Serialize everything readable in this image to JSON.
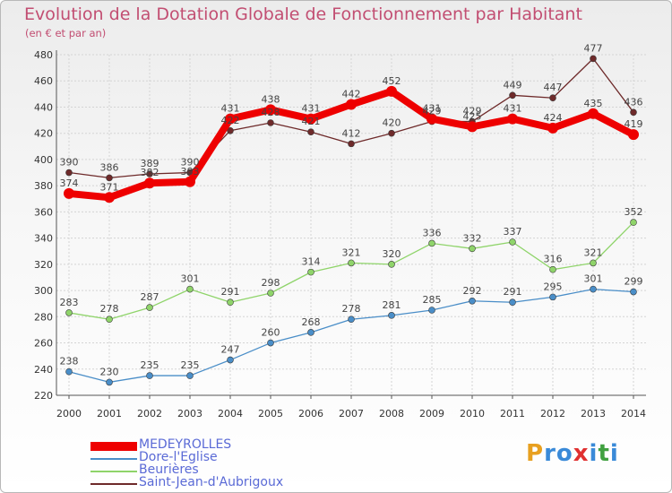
{
  "header": {
    "title": "Evolution de la Dotation Globale de Fonctionnement par Habitant",
    "subtitle": "(en € et par an)"
  },
  "logo": {
    "letters": [
      "P",
      "r",
      "o",
      "x",
      "i",
      "t",
      "i"
    ],
    "colors": [
      "#e8a020",
      "#3a8ad8",
      "#3a8ad8",
      "#e03030",
      "#3a8ad8",
      "#40a040",
      "#3a8ad8"
    ]
  },
  "chart_data": {
    "type": "line",
    "x": [
      "2000",
      "2001",
      "2002",
      "2003",
      "2004",
      "2005",
      "2006",
      "2007",
      "2008",
      "2009",
      "2010",
      "2011",
      "2012",
      "2013",
      "2014"
    ],
    "ylim": [
      220,
      480
    ],
    "yticks": [
      220,
      240,
      260,
      280,
      300,
      320,
      340,
      360,
      380,
      400,
      420,
      440,
      460,
      480
    ],
    "grid": true,
    "legend_position": "bottom-left",
    "series": [
      {
        "name": "MEDEYROLLES",
        "color": "#ee0000",
        "values": [
          374,
          371,
          382,
          383,
          431,
          438,
          431,
          442,
          452,
          431,
          425,
          431,
          424,
          435,
          419
        ]
      },
      {
        "name": "Dore-l'Eglise",
        "color": "#4a8ec8",
        "values": [
          238,
          230,
          235,
          235,
          247,
          260,
          268,
          278,
          281,
          285,
          292,
          291,
          295,
          301,
          299
        ]
      },
      {
        "name": "Beurières",
        "color": "#8fd46a",
        "values": [
          283,
          278,
          287,
          301,
          291,
          298,
          314,
          321,
          320,
          336,
          332,
          337,
          316,
          321,
          352
        ]
      },
      {
        "name": "Saint-Jean-d'Aubrigoux",
        "color": "#6e2a2a",
        "values": [
          390,
          386,
          389,
          390,
          422,
          428,
          421,
          412,
          420,
          429,
          429,
          449,
          447,
          477,
          436
        ]
      }
    ]
  }
}
